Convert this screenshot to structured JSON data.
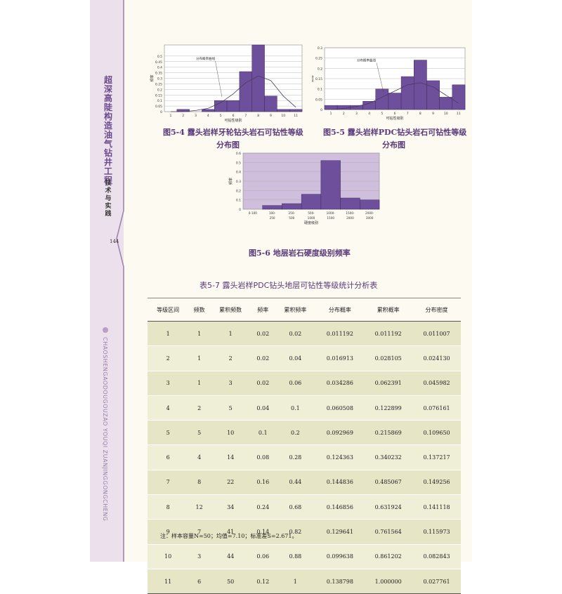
{
  "sidebar": {
    "title": "超深高陡构造油气钻井工程",
    "subtitle": "技术与实践",
    "page_number": "144",
    "pinyin": "CHAOSHENGAODOUGOUZAO YOUQI ZUANJINGGONGCHENG"
  },
  "figures": [
    {
      "caption_line1": "图5-4  露头岩样牙轮钻头岩石可钻性等级",
      "caption_line2": "分布图",
      "chart_data": {
        "type": "bar",
        "categories": [
          "1",
          "2",
          "3",
          "4",
          "5",
          "6",
          "7",
          "8",
          "9",
          "10",
          "11"
        ],
        "values": [
          0.0,
          0.02,
          0.0,
          0.02,
          0.1,
          0.1,
          0.36,
          0.6,
          0.14,
          0.02,
          0.02
        ],
        "ylabel": "频率",
        "xlabel": "可钻性级别",
        "ylim": [
          0,
          0.6
        ],
        "yticks": [
          "0",
          "0.05",
          "0.1",
          "0.15",
          "0.2",
          "0.25",
          "0.3",
          "0.35",
          "0.4",
          "0.45",
          "0.5"
        ],
        "annotation": "分布概率曲线",
        "curve": [
          0.0,
          0.0,
          0.01,
          0.03,
          0.08,
          0.16,
          0.26,
          0.32,
          0.28,
          0.14,
          0.04
        ],
        "colors": {
          "bar": "#6e4f9c",
          "curve": "#4a3a60",
          "plot_bg": "#ffffff"
        }
      }
    },
    {
      "caption_line1": "图5-5  露头岩样PDC钻头岩石可钻性等级",
      "caption_line2": "分布图",
      "chart_data": {
        "type": "bar",
        "categories": [
          "1",
          "2",
          "3",
          "4",
          "5",
          "6",
          "7",
          "8",
          "9",
          "10",
          "11"
        ],
        "values": [
          0.02,
          0.02,
          0.02,
          0.04,
          0.1,
          0.08,
          0.16,
          0.24,
          0.14,
          0.06,
          0.12
        ],
        "ylabel": "频率",
        "xlabel": "可钻性级别",
        "ylim": [
          0,
          0.3
        ],
        "yticks": [
          "0",
          "0.05",
          "0.1",
          "0.15",
          "0.2",
          "0.25",
          "0.3"
        ],
        "annotation": "分布概率曲线",
        "curve": [
          0.0,
          0.005,
          0.015,
          0.03,
          0.06,
          0.09,
          0.12,
          0.13,
          0.11,
          0.07,
          0.03
        ],
        "colors": {
          "bar": "#6e4f9c",
          "curve": "#4a3a60",
          "plot_bg": "#ffffff"
        }
      }
    },
    {
      "caption_line1": "图5-6  地层岩石硬度级别频率",
      "chart_data": {
        "type": "bar",
        "categories": [
          "0-100",
          "100-250",
          "250-500",
          "500-1000",
          "1000-1500",
          "1500-2000",
          "2000-3000"
        ],
        "tick_top": [
          "0-100",
          "100-",
          "250-",
          "500-",
          "1000-",
          "1500-",
          "2000-"
        ],
        "tick_bottom": [
          "",
          "250",
          "500",
          "1000",
          "1500",
          "2000",
          "3000"
        ],
        "values": [
          0.0,
          0.04,
          0.06,
          0.16,
          0.52,
          0.12,
          0.1
        ],
        "ylabel": "频率",
        "xlabel": "硬度级别",
        "ylim": [
          0,
          0.6
        ],
        "yticks": [
          "0",
          "0.1",
          "0.2",
          "0.3",
          "0.4",
          "0.5",
          "0.6"
        ],
        "colors": {
          "bar": "#6e4f9c",
          "plot_bg": "#cfbfdc"
        }
      }
    }
  ],
  "table": {
    "title": "表5-7  露头岩样PDC钻头地层可钻性等级统计分析表",
    "headers": [
      "等级区间",
      "频数",
      "累积频数",
      "频率",
      "累积频率",
      "分布概率",
      "累积概率",
      "分布密度"
    ],
    "rows": [
      [
        "1",
        "1",
        "1",
        "0.02",
        "0.02",
        "0.011192",
        "0.011192",
        "0.011007"
      ],
      [
        "2",
        "1",
        "2",
        "0.02",
        "0.04",
        "0.016913",
        "0.028105",
        "0.024130"
      ],
      [
        "3",
        "1",
        "3",
        "0.02",
        "0.06",
        "0.034286",
        "0.062391",
        "0.045982"
      ],
      [
        "4",
        "2",
        "5",
        "0.04",
        "0.1",
        "0.060508",
        "0.122899",
        "0.076161"
      ],
      [
        "5",
        "5",
        "10",
        "0.1",
        "0.2",
        "0.092969",
        "0.215869",
        "0.109650"
      ],
      [
        "6",
        "4",
        "14",
        "0.08",
        "0.28",
        "0.124363",
        "0.340232",
        "0.137217"
      ],
      [
        "7",
        "8",
        "22",
        "0.16",
        "0.44",
        "0.144836",
        "0.485067",
        "0.149256"
      ],
      [
        "8",
        "12",
        "34",
        "0.24",
        "0.68",
        "0.146856",
        "0.631924",
        "0.141118"
      ],
      [
        "9",
        "7",
        "41",
        "0.14",
        "0.82",
        "0.129641",
        "0.761564",
        "0.115973"
      ],
      [
        "10",
        "3",
        "44",
        "0.06",
        "0.88",
        "0.099638",
        "0.861202",
        "0.082843"
      ],
      [
        "11",
        "6",
        "50",
        "0.12",
        "1",
        "0.138798",
        "1.000000",
        "0.027761"
      ]
    ],
    "note": "注：样本容量N=50；均值=7.10；标准差S=2.671。"
  }
}
